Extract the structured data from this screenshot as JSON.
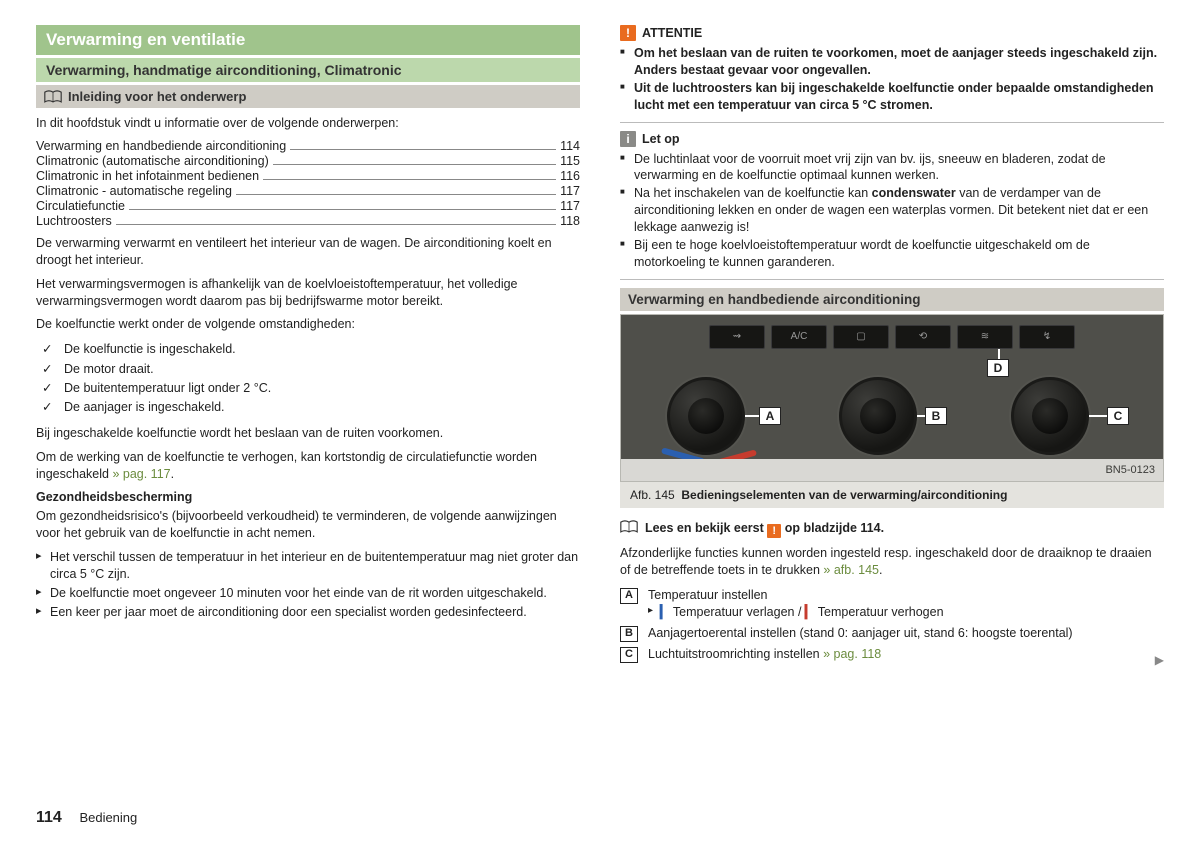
{
  "left": {
    "title": "Verwarming en ventilatie",
    "subtitle": "Verwarming, handmatige airconditioning, Climatronic",
    "intro_bar": "Inleiding voor het onderwerp",
    "intro_line": "In dit hoofdstuk vindt u informatie over de volgende onderwerpen:",
    "toc": [
      {
        "label": "Verwarming en handbediende airconditioning",
        "page": "114"
      },
      {
        "label": "Climatronic (automatische airconditioning)",
        "page": "115"
      },
      {
        "label": "Climatronic in het infotainment bedienen",
        "page": "116"
      },
      {
        "label": "Climatronic - automatische regeling",
        "page": "117"
      },
      {
        "label": "Circulatiefunctie",
        "page": "117"
      },
      {
        "label": "Luchtroosters",
        "page": "118"
      }
    ],
    "p1": "De verwarming verwarmt en ventileert het interieur van de wagen. De airconditioning koelt en droogt het interieur.",
    "p2": "Het verwarmingsvermogen is afhankelijk van de koelvloeistoftemperatuur, het volledige verwarmingsvermogen wordt daarom pas bij bedrijfswarme motor bereikt.",
    "p3": "De koelfunctie werkt onder de volgende omstandigheden:",
    "checks": [
      "De koelfunctie is ingeschakeld.",
      "De motor draait.",
      "De buitentemperatuur ligt onder 2 °C.",
      "De aanjager is ingeschakeld."
    ],
    "p4": "Bij ingeschakelde koelfunctie wordt het beslaan van de ruiten voorkomen.",
    "p5a": "Om de werking van de koelfunctie te verhogen, kan kortstondig de circulatiefunctie worden ingeschakeld ",
    "p5ref": "» pag. 117",
    "p5b": ".",
    "h_gezond": "Gezondheidsbescherming",
    "p6": "Om gezondheidsrisico's (bijvoorbeeld verkoudheid) te verminderen, de volgende aanwijzingen voor het gebruik van de koelfunctie in acht nemen.",
    "tri": [
      "Het verschil tussen de temperatuur in het interieur en de buitentemperatuur mag niet groter dan circa 5 °C zijn.",
      "De koelfunctie moet ongeveer 10 minuten voor het einde van de rit worden uitgeschakeld.",
      "Een keer per jaar moet de airconditioning door een specialist worden gedesinfecteerd."
    ]
  },
  "right": {
    "warn_title": "ATTENTIE",
    "warn_items": [
      "Om het beslaan van de ruiten te voorkomen, moet de aanjager steeds ingeschakeld zijn. Anders bestaat gevaar voor ongevallen.",
      "Uit de luchtroosters kan bij ingeschakelde koelfunctie onder bepaalde omstandigheden lucht met een temperatuur van circa 5 °C stromen."
    ],
    "note_title": "Let op",
    "note_items": [
      {
        "pre": "De luchtinlaat voor de voorruit moet vrij zijn van bv. ijs, sneeuw en bladeren, zodat de verwarming en de koelfunctie optimaal kunnen werken."
      },
      {
        "pre": "Na het inschakelen van de koelfunctie kan ",
        "bold": "condenswater",
        "post": " van de verdamper van de airconditioning lekken en onder de wagen een waterplas vormen. Dit betekent niet dat er een lekkage aanwezig is!"
      },
      {
        "pre": "Bij een te hoge koelvloeistoftemperatuur wordt de koelfunctie uitgeschakeld om de motorkoeling te kunnen garanderen."
      }
    ],
    "section_bar": "Verwarming en handbediende airconditioning",
    "fig_code": "BN5-0123",
    "fig_caption_label": "Afb. 145",
    "fig_caption_text": "Bedieningselementen van de verwarming/airconditioning",
    "read_first_a": "Lees en bekijk eerst ",
    "read_first_b": " op bladzijde 114.",
    "p_after": "Afzonderlijke functies kunnen worden ingesteld resp. ingeschakeld door de draaiknop te draaien of de betreffende toets in te drukken ",
    "p_after_ref": "» afb. 145",
    "p_after_end": ".",
    "leg": {
      "A": "Temperatuur instellen",
      "A_sub_a": " Temperatuur verlagen / ",
      "A_sub_b": " Temperatuur verhogen",
      "B": "Aanjagertoerental instellen (stand 0: aanjager uit, stand 6: hoogste toerental)",
      "C": "Luchtuitstroomrichting instellen ",
      "C_ref": "» pag. 118"
    },
    "ctrl_btns": [
      "⇝",
      "A/C",
      "▢",
      "⟲",
      "≋",
      "↯"
    ]
  },
  "footer": {
    "page": "114",
    "section": "Bediening"
  },
  "icons": {
    "warn": "!",
    "info": "i",
    "blue_bar": "▎",
    "red_bar": "▎"
  }
}
